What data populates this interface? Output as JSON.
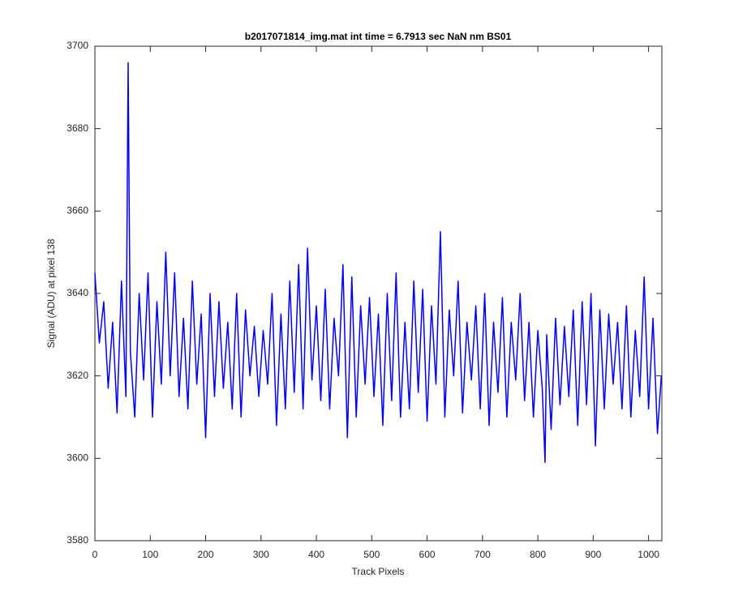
{
  "chart_data": {
    "type": "line",
    "title": "b2017071814_img.mat int time = 6.7913 sec  NaN nm BS01",
    "x_label": "Track Pixels",
    "y_label": "Signal (ADU) at pixel 138",
    "xlim": [
      0,
      1024
    ],
    "ylim": [
      3580,
      3700
    ],
    "xticks": [
      0,
      100,
      200,
      300,
      400,
      500,
      600,
      700,
      800,
      900,
      1000
    ],
    "yticks": [
      3580,
      3600,
      3620,
      3640,
      3660,
      3680,
      3700
    ],
    "color": "#0000ff",
    "x": [
      0,
      8,
      16,
      24,
      32,
      40,
      48,
      56,
      60,
      64,
      72,
      80,
      88,
      96,
      104,
      112,
      120,
      128,
      136,
      144,
      152,
      160,
      168,
      176,
      184,
      192,
      200,
      208,
      216,
      224,
      232,
      240,
      248,
      256,
      264,
      272,
      280,
      288,
      296,
      304,
      312,
      320,
      328,
      336,
      344,
      352,
      360,
      368,
      376,
      384,
      392,
      400,
      408,
      416,
      424,
      432,
      440,
      448,
      456,
      464,
      472,
      480,
      488,
      496,
      504,
      512,
      520,
      528,
      536,
      544,
      552,
      560,
      568,
      576,
      584,
      592,
      600,
      608,
      616,
      624,
      632,
      640,
      648,
      656,
      664,
      672,
      680,
      688,
      696,
      704,
      712,
      720,
      728,
      736,
      744,
      752,
      760,
      768,
      776,
      784,
      792,
      800,
      808,
      813,
      816,
      824,
      832,
      840,
      848,
      856,
      864,
      872,
      880,
      888,
      896,
      904,
      912,
      920,
      928,
      936,
      944,
      952,
      960,
      968,
      976,
      984,
      992,
      1000,
      1008,
      1016,
      1023
    ],
    "values": [
      3645,
      3628,
      3638,
      3617,
      3633,
      3611,
      3643,
      3615,
      3696,
      3626,
      3610,
      3640,
      3619,
      3645,
      3610,
      3638,
      3618,
      3650,
      3620,
      3645,
      3615,
      3634,
      3612,
      3643,
      3618,
      3635,
      3605,
      3640,
      3615,
      3638,
      3617,
      3633,
      3612,
      3640,
      3610,
      3636,
      3620,
      3632,
      3615,
      3631,
      3618,
      3640,
      3608,
      3635,
      3612,
      3643,
      3616,
      3647,
      3612,
      3651,
      3619,
      3637,
      3614,
      3641,
      3612,
      3634,
      3620,
      3647,
      3605,
      3644,
      3610,
      3637,
      3618,
      3639,
      3615,
      3635,
      3608,
      3640,
      3614,
      3645,
      3610,
      3633,
      3612,
      3643,
      3616,
      3641,
      3609,
      3637,
      3618,
      3655,
      3610,
      3636,
      3620,
      3643,
      3611,
      3633,
      3619,
      3637,
      3612,
      3640,
      3608,
      3633,
      3616,
      3639,
      3610,
      3633,
      3619,
      3640,
      3614,
      3633,
      3610,
      3631,
      3617,
      3599,
      3630,
      3607,
      3634,
      3613,
      3632,
      3615,
      3636,
      3608,
      3638,
      3613,
      3640,
      3603,
      3636,
      3612,
      3635,
      3618,
      3633,
      3612,
      3637,
      3610,
      3631,
      3615,
      3644,
      3612,
      3634,
      3606,
      3620
    ]
  }
}
